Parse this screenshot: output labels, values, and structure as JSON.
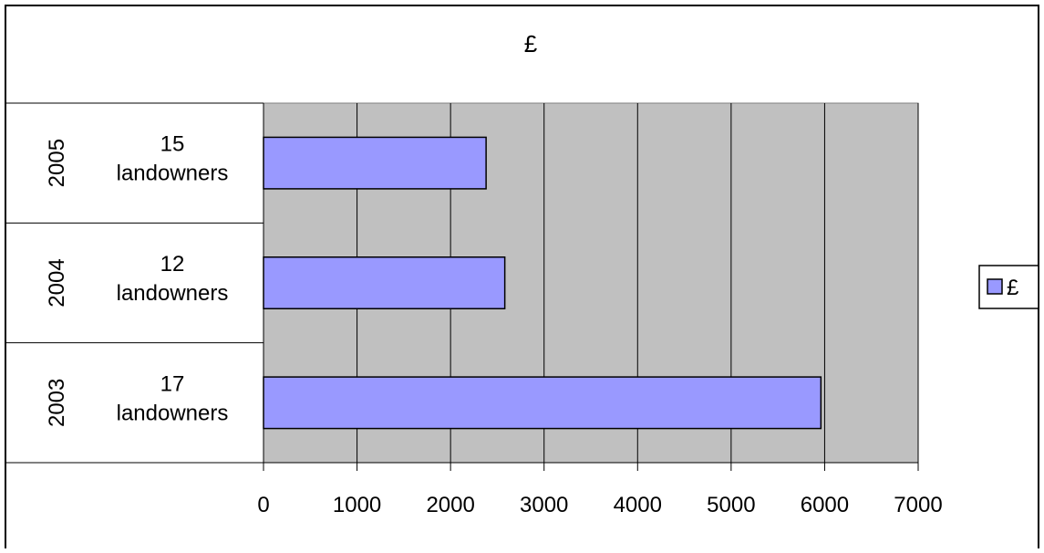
{
  "chart_data": {
    "type": "bar",
    "orientation": "horizontal",
    "title": "£",
    "categories": [
      {
        "group": "2005",
        "label": [
          "15",
          "landowners"
        ]
      },
      {
        "group": "2004",
        "label": [
          "12",
          "landowners"
        ]
      },
      {
        "group": "2003",
        "label": [
          "17",
          "landowners"
        ]
      }
    ],
    "series": [
      {
        "name": "£",
        "values": [
          2380,
          2580,
          5960
        ]
      }
    ],
    "xlim": [
      0,
      7000
    ],
    "xticks": [
      0,
      1000,
      2000,
      3000,
      4000,
      5000,
      6000,
      7000
    ],
    "grid": "vertical",
    "legend": "right",
    "colors": {
      "bar_fill": "#9999ff",
      "plot_background": "#c0c0c0",
      "border": "#000000"
    }
  }
}
